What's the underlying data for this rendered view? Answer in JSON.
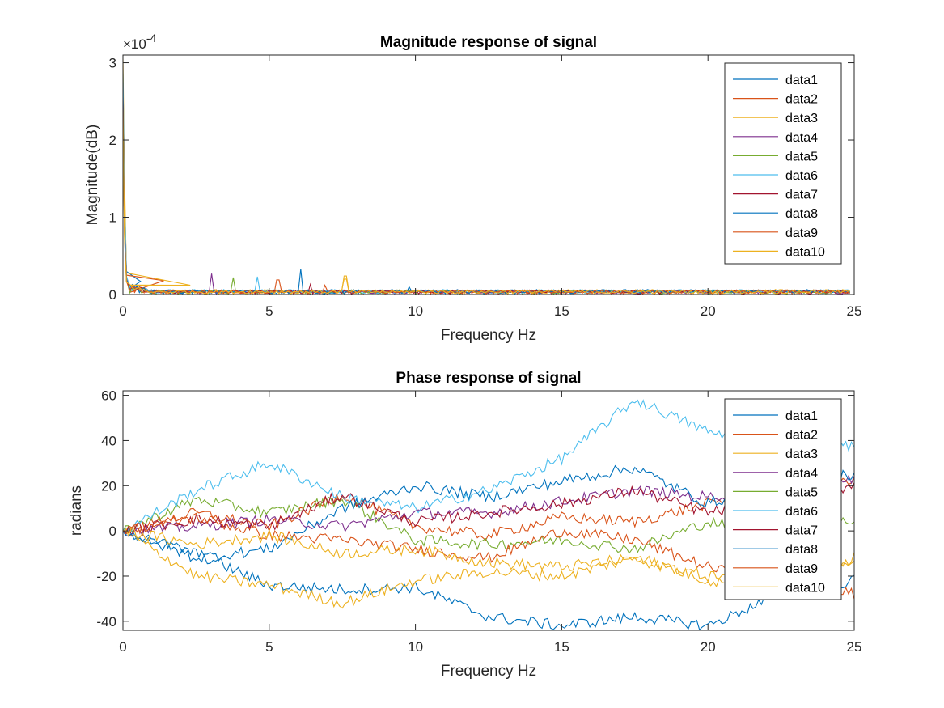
{
  "colors": [
    "#0072BD",
    "#D95319",
    "#EDB120",
    "#7E2F8E",
    "#77AC30",
    "#4DBEEE",
    "#A2142F",
    "#0072BD",
    "#D95319",
    "#EDB120"
  ],
  "chart_data": [
    {
      "type": "line",
      "title": "Magnitude response of signal",
      "xlabel": "Frequency Hz",
      "ylabel": "Magnitude(dB)",
      "xlim": [
        0,
        25
      ],
      "ylim": [
        0,
        3.1
      ],
      "xticks": [
        0,
        5,
        10,
        15,
        20,
        25
      ],
      "yticks": [
        0,
        1,
        2,
        3
      ],
      "y_exponent_label": "×10",
      "y_exponent_power": "-4",
      "legend": "top-right",
      "grid": false,
      "series": [
        {
          "name": "data1",
          "spikes": [
            [
              0,
              2.85
            ],
            [
              0.05,
              1.4
            ],
            [
              0.12,
              0.3
            ],
            [
              0.6,
              0.17
            ]
          ],
          "peak": [
            6.05,
            0.33
          ],
          "baseline": 0.04
        },
        {
          "name": "data2",
          "spikes": [
            [
              0,
              2.7
            ],
            [
              0.05,
              1.2
            ],
            [
              0.12,
              0.25
            ],
            [
              1.4,
              0.18
            ]
          ],
          "peak": [
            5.3,
            0.19
          ],
          "baseline": 0.035
        },
        {
          "name": "data3",
          "spikes": [
            [
              0,
              3.05
            ],
            [
              0.05,
              1.6
            ],
            [
              0.12,
              0.28
            ],
            [
              2.3,
              0.12
            ]
          ],
          "peak": [
            7.6,
            0.24
          ],
          "baseline": 0.04
        },
        {
          "name": "data4",
          "spikes": [
            [
              0,
              2.75
            ],
            [
              0.05,
              1.1
            ],
            [
              0.12,
              0.22
            ]
          ],
          "peak": [
            3.0,
            0.27
          ],
          "baseline": 0.035
        },
        {
          "name": "data5",
          "spikes": [
            [
              0,
              2.6
            ],
            [
              0.05,
              1.0
            ],
            [
              0.12,
              0.2
            ]
          ],
          "peak": [
            3.75,
            0.22
          ],
          "baseline": 0.035
        },
        {
          "name": "data6",
          "spikes": [
            [
              0,
              2.9
            ],
            [
              0.05,
              1.3
            ],
            [
              0.12,
              0.24
            ]
          ],
          "peak": [
            4.6,
            0.23
          ],
          "baseline": 0.04
        },
        {
          "name": "data7",
          "spikes": [
            [
              0,
              2.55
            ],
            [
              0.05,
              0.9
            ],
            [
              0.12,
              0.2
            ]
          ],
          "peak": [
            6.4,
            0.13
          ],
          "baseline": 0.035
        },
        {
          "name": "data8",
          "spikes": [
            [
              0,
              2.5
            ],
            [
              0.05,
              0.85
            ],
            [
              0.12,
              0.18
            ]
          ],
          "peak": [
            9.8,
            0.1
          ],
          "baseline": 0.035
        },
        {
          "name": "data9",
          "spikes": [
            [
              0,
              2.45
            ],
            [
              0.05,
              0.8
            ],
            [
              0.12,
              0.17
            ]
          ],
          "peak": [
            6.9,
            0.12
          ],
          "baseline": 0.035
        },
        {
          "name": "data10",
          "spikes": [
            [
              0,
              2.4
            ],
            [
              0.05,
              0.75
            ],
            [
              0.12,
              0.16
            ]
          ],
          "peak": [
            7.6,
            0.2
          ],
          "baseline": 0.035
        }
      ]
    },
    {
      "type": "line",
      "title": "Phase response of signal",
      "xlabel": "Frequency Hz",
      "ylabel": "radians",
      "xlim": [
        0,
        25
      ],
      "ylim": [
        -44,
        62
      ],
      "xticks": [
        0,
        5,
        10,
        15,
        20,
        25
      ],
      "yticks": [
        -40,
        -20,
        0,
        20,
        40,
        60
      ],
      "legend": "top-right",
      "grid": false,
      "series": [
        {
          "name": "data1",
          "x": [
            0,
            2.5,
            5,
            7.5,
            10,
            12.5,
            15,
            17.5,
            20,
            22.5,
            25
          ],
          "y": [
            0,
            -10,
            -24,
            -26,
            -25,
            -38,
            -42,
            -38,
            -42,
            -28,
            -22
          ]
        },
        {
          "name": "data2",
          "x": [
            0,
            2.5,
            5,
            7.5,
            10,
            12.5,
            15,
            17.5,
            20,
            22.5,
            25
          ],
          "y": [
            0,
            8,
            2,
            16,
            2,
            -2,
            6,
            4,
            12,
            18,
            22
          ]
        },
        {
          "name": "data3",
          "x": [
            0,
            2.5,
            5,
            7.5,
            10,
            12.5,
            15,
            17.5,
            20,
            22.5,
            25
          ],
          "y": [
            0,
            -20,
            -24,
            -32,
            -22,
            -18,
            -20,
            -12,
            -22,
            -25,
            -12
          ]
        },
        {
          "name": "data4",
          "x": [
            0,
            2.5,
            5,
            7.5,
            10,
            12.5,
            15,
            17.5,
            20,
            22.5,
            25
          ],
          "y": [
            0,
            2,
            5,
            2,
            8,
            8,
            13,
            18,
            15,
            20,
            22
          ]
        },
        {
          "name": "data5",
          "x": [
            0,
            2.5,
            5,
            7.5,
            10,
            12.5,
            15,
            17.5,
            20,
            22.5,
            25
          ],
          "y": [
            0,
            14,
            8,
            14,
            -4,
            -6,
            -4,
            -8,
            4,
            -2,
            5
          ]
        },
        {
          "name": "data6",
          "x": [
            0,
            2.5,
            5,
            7.5,
            10,
            12.5,
            15,
            17.5,
            20,
            22.5,
            25
          ],
          "y": [
            0,
            18,
            30,
            15,
            10,
            18,
            32,
            58,
            44,
            36,
            38
          ]
        },
        {
          "name": "data7",
          "x": [
            0,
            2.5,
            5,
            7.5,
            10,
            12.5,
            15,
            17.5,
            20,
            22.5,
            25
          ],
          "y": [
            0,
            5,
            2,
            16,
            4,
            8,
            12,
            18,
            8,
            14,
            20
          ]
        },
        {
          "name": "data8",
          "x": [
            0,
            2.5,
            5,
            7.5,
            10,
            12.5,
            15,
            17.5,
            20,
            22.5,
            25
          ],
          "y": [
            0,
            -12,
            -8,
            10,
            20,
            15,
            22,
            28,
            12,
            22,
            25
          ]
        },
        {
          "name": "data9",
          "x": [
            0,
            2.5,
            5,
            7.5,
            10,
            12.5,
            15,
            17.5,
            20,
            22.5,
            25
          ],
          "y": [
            0,
            6,
            -2,
            -4,
            -8,
            -12,
            0,
            -4,
            -16,
            -24,
            -28
          ]
        },
        {
          "name": "data10",
          "x": [
            0,
            2.5,
            5,
            7.5,
            10,
            12.5,
            15,
            17.5,
            20,
            22.5,
            25
          ],
          "y": [
            0,
            -6,
            -2,
            -10,
            -8,
            -14,
            -16,
            -12,
            -20,
            -18,
            -14
          ]
        }
      ]
    }
  ]
}
